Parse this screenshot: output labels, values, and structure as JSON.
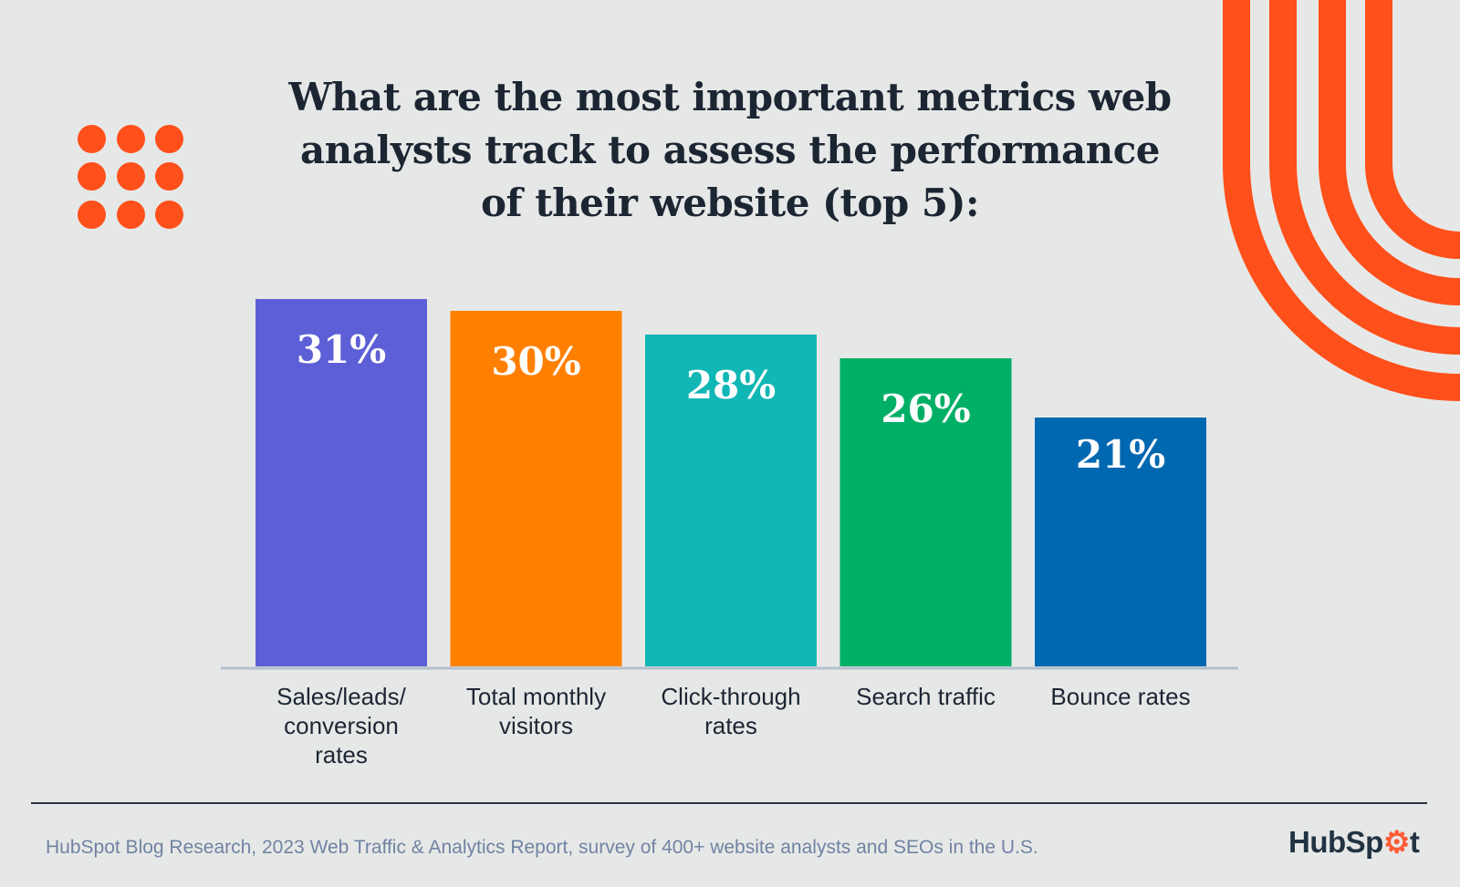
{
  "colors": {
    "background": "#e6e8e7",
    "accent": "#ff4f1a",
    "bars": [
      "#5d5fd6",
      "#ff8000",
      "#10b7b5",
      "#00af66",
      "#0068b1"
    ],
    "axis": "#b4bfcc"
  },
  "chart_data": {
    "type": "bar",
    "title": "What are the most important metrics web analysts track to assess the performance of their website (top 5):",
    "title_lines": [
      "What are the most important metrics web",
      "analysts track to assess the performance",
      "of their website (top 5):"
    ],
    "categories": [
      "Sales/leads/ conversion rates",
      "Total monthly visitors",
      "Click-through rates",
      "Search traffic",
      "Bounce rates"
    ],
    "category_lines": [
      [
        "Sales/leads/",
        "conversion",
        "rates"
      ],
      [
        "Total monthly",
        "visitors"
      ],
      [
        "Click-through",
        "rates"
      ],
      [
        "Search traffic"
      ],
      [
        "Bounce rates"
      ]
    ],
    "values": [
      31,
      30,
      28,
      26,
      21
    ],
    "data_labels": [
      "31%",
      "30%",
      "28%",
      "26%",
      "21%"
    ],
    "unit": "%",
    "ylim": [
      0,
      31
    ],
    "grid": false,
    "legend": "none"
  },
  "footer": {
    "source": "HubSpot Blog Research, 2023 Web Traffic & Analytics Report, survey of 400+ website analysts and SEOs in the U.S.",
    "logo": "HubSpot"
  }
}
